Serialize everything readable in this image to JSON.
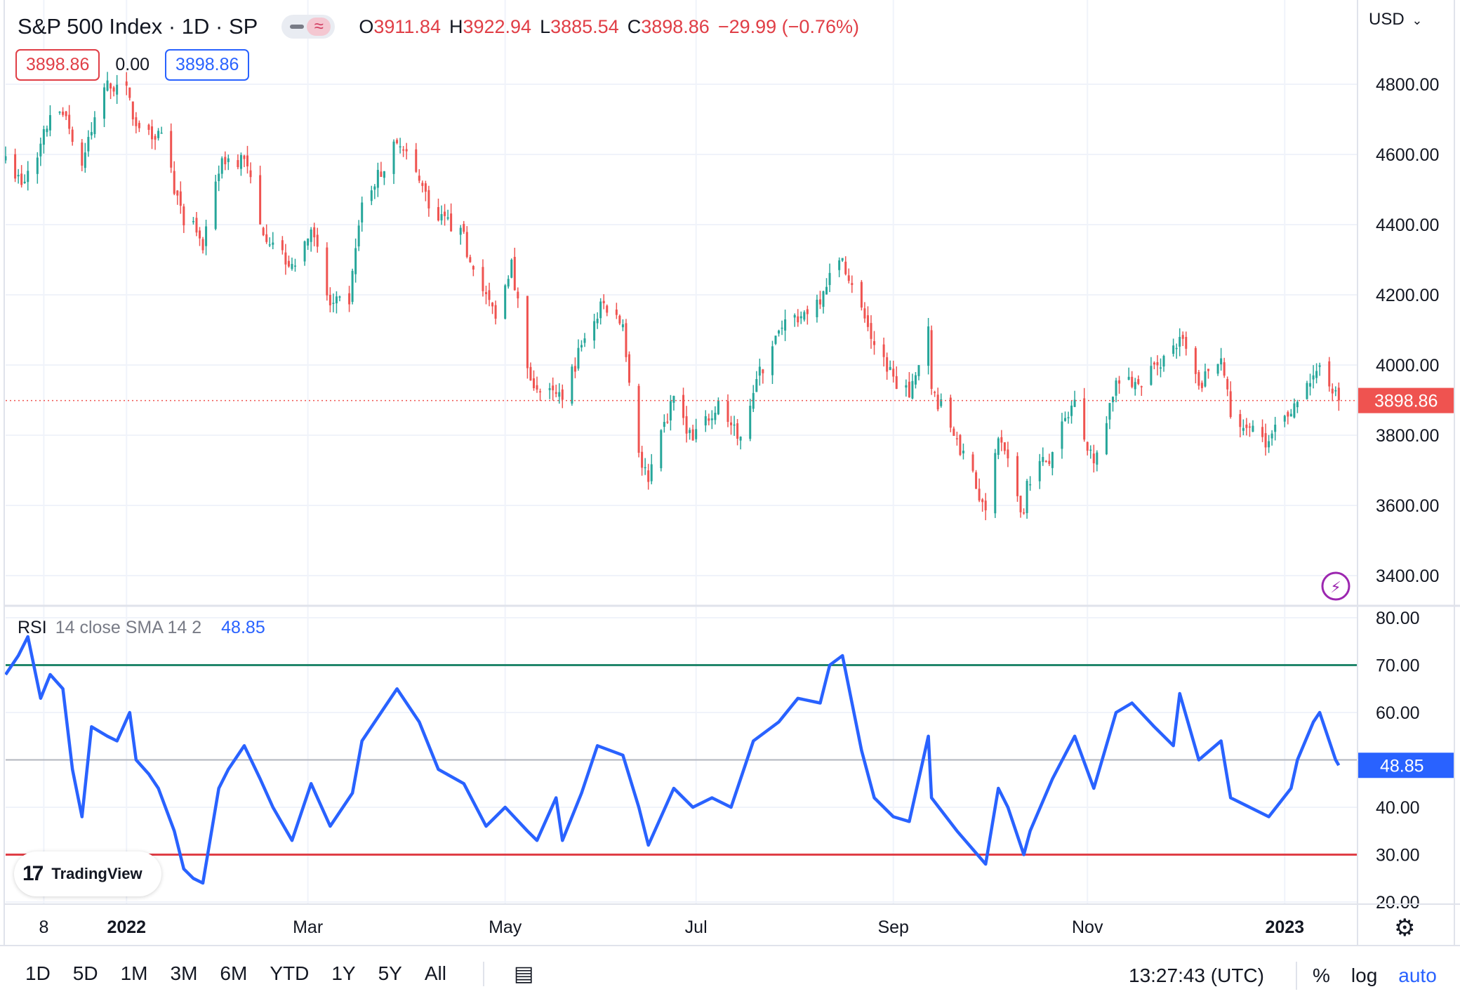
{
  "header": {
    "symbol_title": "S&P 500 Index · 1D · SP",
    "ohlc": {
      "o_label": "O",
      "o_value": "3911.84",
      "h_label": "H",
      "h_value": "3922.94",
      "l_label": "L",
      "l_value": "3885.54",
      "c_label": "C",
      "c_value": "3898.86",
      "change": "−29.99 (−0.76%)"
    },
    "sell_price": "3898.86",
    "spread": "0.00",
    "buy_price": "3898.86",
    "currency": "USD"
  },
  "rsi_legend": {
    "label": "RSI",
    "params": "14 close SMA 14 2",
    "value": "48.85"
  },
  "bottom_bar": {
    "ranges": [
      "1D",
      "5D",
      "1M",
      "3M",
      "6M",
      "YTD",
      "1Y",
      "5Y",
      "All"
    ],
    "clock": "13:27:43 (UTC)",
    "percent_label": "%",
    "log_label": "log",
    "auto_label": "auto"
  },
  "branding": {
    "logo_text": "TradingView"
  },
  "icons": {
    "calendar": "calendar-range-icon",
    "gear": "gear-icon",
    "lightning": "lightning-icon",
    "toggle": "wave-icon"
  },
  "colors": {
    "up": "#26a69a",
    "down": "#ef5350",
    "price_text": "#e03e46",
    "rsi_line": "#2962ff",
    "rsi_upper": "#22866b",
    "rsi_lower": "#e03e46",
    "grid": "#f0f3fa",
    "current_price_tag": "#ef5350"
  },
  "chart_data": [
    {
      "type": "candlestick",
      "title": "S&P 500 Index · 1D · SP",
      "y_range": [
        3320,
        4880
      ],
      "y_ticks": [
        "4800.00",
        "4600.00",
        "4400.00",
        "4200.00",
        "4000.00",
        "3800.00",
        "3600.00",
        "3400.00"
      ],
      "x_ticks": [
        "8",
        "2022",
        "Mar",
        "May",
        "Jul",
        "Sep",
        "Nov",
        "2023"
      ],
      "x_range": [
        "2021-11-26",
        "2023-01-24"
      ],
      "x_tick_dates": [
        "2021-12-08",
        "2022-01-03",
        "2022-03-01",
        "2022-05-02",
        "2022-07-01",
        "2022-09-01",
        "2022-11-01",
        "2023-01-02"
      ],
      "current_price": 3898.86,
      "current_price_label": "3898.86",
      "closes": [
        [
          "2021-11-26",
          4595
        ],
        [
          "2021-12-01",
          4513
        ],
        [
          "2021-12-06",
          4591
        ],
        [
          "2021-12-10",
          4712
        ],
        [
          "2021-12-15",
          4709
        ],
        [
          "2021-12-20",
          4568
        ],
        [
          "2021-12-27",
          4791
        ],
        [
          "2022-01-03",
          4796
        ],
        [
          "2022-01-05",
          4700
        ],
        [
          "2022-01-10",
          4670
        ],
        [
          "2022-01-14",
          4662
        ],
        [
          "2022-01-21",
          4398
        ],
        [
          "2022-01-24",
          4410
        ],
        [
          "2022-01-27",
          4327
        ],
        [
          "2022-02-02",
          4589
        ],
        [
          "2022-02-09",
          4587
        ],
        [
          "2022-02-14",
          4401
        ],
        [
          "2022-02-18",
          4349
        ],
        [
          "2022-02-24",
          4288
        ],
        [
          "2022-03-02",
          4386
        ],
        [
          "2022-03-08",
          4170
        ],
        [
          "2022-03-14",
          4173
        ],
        [
          "2022-03-18",
          4463
        ],
        [
          "2022-03-29",
          4632
        ],
        [
          "2022-04-05",
          4525
        ],
        [
          "2022-04-11",
          4412
        ],
        [
          "2022-04-18",
          4391
        ],
        [
          "2022-04-22",
          4272
        ],
        [
          "2022-04-29",
          4132
        ],
        [
          "2022-05-04",
          4300
        ],
        [
          "2022-05-09",
          3991
        ],
        [
          "2022-05-12",
          3930
        ],
        [
          "2022-05-20",
          3901
        ],
        [
          "2022-05-26",
          4057
        ],
        [
          "2022-06-02",
          4176
        ],
        [
          "2022-06-08",
          4116
        ],
        [
          "2022-06-13",
          3750
        ],
        [
          "2022-06-16",
          3667
        ],
        [
          "2022-06-24",
          3912
        ],
        [
          "2022-06-30",
          3785
        ],
        [
          "2022-07-08",
          3899
        ],
        [
          "2022-07-14",
          3790
        ],
        [
          "2022-07-20",
          3960
        ],
        [
          "2022-07-29",
          4130
        ],
        [
          "2022-08-05",
          4145
        ],
        [
          "2022-08-10",
          4210
        ],
        [
          "2022-08-16",
          4305
        ],
        [
          "2022-08-19",
          4228
        ],
        [
          "2022-08-26",
          4057
        ],
        [
          "2022-09-01",
          3967
        ],
        [
          "2022-09-06",
          3908
        ],
        [
          "2022-09-12",
          4110
        ],
        [
          "2022-09-13",
          3932
        ],
        [
          "2022-09-21",
          3790
        ],
        [
          "2022-09-30",
          3586
        ],
        [
          "2022-10-04",
          3791
        ],
        [
          "2022-10-12",
          3578
        ],
        [
          "2022-10-13",
          3670
        ],
        [
          "2022-10-21",
          3752
        ],
        [
          "2022-10-28",
          3901
        ],
        [
          "2022-11-03",
          3720
        ],
        [
          "2022-11-10",
          3956
        ],
        [
          "2022-11-17",
          3946
        ],
        [
          "2022-11-25",
          4026
        ],
        [
          "2022-11-30",
          4080
        ],
        [
          "2022-12-06",
          3941
        ],
        [
          "2022-12-13",
          4019
        ],
        [
          "2022-12-16",
          3852
        ],
        [
          "2022-12-22",
          3822
        ],
        [
          "2022-12-28",
          3783
        ],
        [
          "2023-01-06",
          3895
        ],
        [
          "2023-01-12",
          3983
        ],
        [
          "2023-01-13",
          3999
        ],
        [
          "2023-01-18",
          3928
        ],
        [
          "2023-01-19",
          3898.86
        ]
      ]
    },
    {
      "type": "line",
      "title": "RSI 14 close SMA 14 2",
      "y_range": [
        20,
        80
      ],
      "y_ticks": [
        "80.00",
        "70.00",
        "60.00",
        "40.00",
        "30.00",
        "20.00"
      ],
      "bands": [
        70,
        30
      ],
      "midline": 50,
      "current_value": 48.85,
      "current_value_label": "48.85",
      "series": [
        {
          "points": [
            [
              "2021-11-26",
              68
            ],
            [
              "2021-11-30",
              72
            ],
            [
              "2021-12-03",
              76
            ],
            [
              "2021-12-07",
              63
            ],
            [
              "2021-12-10",
              68
            ],
            [
              "2021-12-14",
              65
            ],
            [
              "2021-12-17",
              48
            ],
            [
              "2021-12-20",
              38
            ],
            [
              "2021-12-23",
              57
            ],
            [
              "2021-12-28",
              55
            ],
            [
              "2021-12-31",
              54
            ],
            [
              "2022-01-04",
              60
            ],
            [
              "2022-01-06",
              50
            ],
            [
              "2022-01-10",
              47
            ],
            [
              "2022-01-13",
              44
            ],
            [
              "2022-01-18",
              35
            ],
            [
              "2022-01-21",
              27
            ],
            [
              "2022-01-24",
              25
            ],
            [
              "2022-01-27",
              24
            ],
            [
              "2022-02-01",
              44
            ],
            [
              "2022-02-04",
              48
            ],
            [
              "2022-02-09",
              53
            ],
            [
              "2022-02-14",
              46
            ],
            [
              "2022-02-18",
              40
            ],
            [
              "2022-02-24",
              33
            ],
            [
              "2022-03-02",
              45
            ],
            [
              "2022-03-08",
              36
            ],
            [
              "2022-03-15",
              43
            ],
            [
              "2022-03-18",
              54
            ],
            [
              "2022-03-25",
              61
            ],
            [
              "2022-03-29",
              65
            ],
            [
              "2022-04-05",
              58
            ],
            [
              "2022-04-11",
              48
            ],
            [
              "2022-04-19",
              45
            ],
            [
              "2022-04-26",
              36
            ],
            [
              "2022-05-02",
              40
            ],
            [
              "2022-05-09",
              35
            ],
            [
              "2022-05-12",
              33
            ],
            [
              "2022-05-18",
              42
            ],
            [
              "2022-05-20",
              33
            ],
            [
              "2022-05-26",
              43
            ],
            [
              "2022-05-31",
              53
            ],
            [
              "2022-06-08",
              51
            ],
            [
              "2022-06-13",
              40
            ],
            [
              "2022-06-16",
              32
            ],
            [
              "2022-06-24",
              44
            ],
            [
              "2022-06-30",
              40
            ],
            [
              "2022-07-06",
              42
            ],
            [
              "2022-07-12",
              40
            ],
            [
              "2022-07-19",
              54
            ],
            [
              "2022-07-27",
              58
            ],
            [
              "2022-08-02",
              63
            ],
            [
              "2022-08-09",
              62
            ],
            [
              "2022-08-12",
              70
            ],
            [
              "2022-08-16",
              72
            ],
            [
              "2022-08-22",
              52
            ],
            [
              "2022-08-26",
              42
            ],
            [
              "2022-09-01",
              38
            ],
            [
              "2022-09-06",
              37
            ],
            [
              "2022-09-12",
              55
            ],
            [
              "2022-09-13",
              42
            ],
            [
              "2022-09-21",
              35
            ],
            [
              "2022-09-30",
              28
            ],
            [
              "2022-10-04",
              44
            ],
            [
              "2022-10-07",
              40
            ],
            [
              "2022-10-12",
              30
            ],
            [
              "2022-10-14",
              35
            ],
            [
              "2022-10-21",
              46
            ],
            [
              "2022-10-28",
              55
            ],
            [
              "2022-11-03",
              44
            ],
            [
              "2022-11-10",
              60
            ],
            [
              "2022-11-15",
              62
            ],
            [
              "2022-11-22",
              57
            ],
            [
              "2022-11-28",
              53
            ],
            [
              "2022-11-30",
              64
            ],
            [
              "2022-12-06",
              50
            ],
            [
              "2022-12-13",
              54
            ],
            [
              "2022-12-16",
              42
            ],
            [
              "2022-12-22",
              40
            ],
            [
              "2022-12-28",
              38
            ],
            [
              "2023-01-04",
              44
            ],
            [
              "2023-01-06",
              50
            ],
            [
              "2023-01-11",
              58
            ],
            [
              "2023-01-13",
              60
            ],
            [
              "2023-01-18",
              50
            ],
            [
              "2023-01-19",
              48.85
            ]
          ]
        }
      ]
    }
  ]
}
